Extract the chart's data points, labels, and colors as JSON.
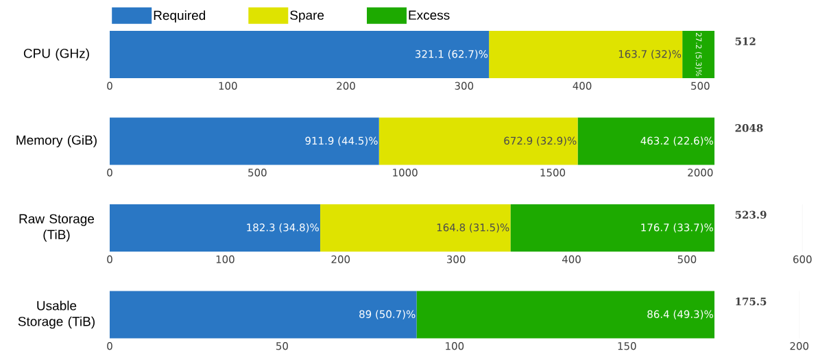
{
  "chart_data": [
    {
      "type": "bar",
      "orientation": "horizontal",
      "stacked": true,
      "categories": [
        "CPU (GHz)"
      ],
      "legend": "top",
      "xlim": [
        0,
        512
      ],
      "xticks": [
        0,
        100,
        200,
        300,
        400,
        500
      ],
      "totals": [
        "512"
      ],
      "series": [
        {
          "name": "Required",
          "color": "#2a77c4",
          "values": [
            321.1
          ],
          "value_labels": [
            "321.1 (62.7)%"
          ]
        },
        {
          "name": "Spare",
          "color": "#dfe300",
          "values": [
            163.7
          ],
          "value_labels": [
            "163.7 (32)%"
          ]
        },
        {
          "name": "Excess",
          "color": "#1daa00",
          "values": [
            27.2
          ],
          "value_labels": [
            "27.2 (5.3)%"
          ]
        }
      ]
    },
    {
      "type": "bar",
      "orientation": "horizontal",
      "stacked": true,
      "categories": [
        "Memory (GiB)"
      ],
      "xlim": [
        0,
        2048
      ],
      "xticks": [
        0,
        500,
        1000,
        1500,
        2000
      ],
      "totals": [
        "2048"
      ],
      "series": [
        {
          "color": "#2a77c4",
          "values": [
            911.9
          ],
          "value_labels": [
            "911.9 (44.5)%"
          ]
        },
        {
          "color": "#dfe300",
          "values": [
            672.9
          ],
          "value_labels": [
            "672.9 (32.9)%"
          ]
        },
        {
          "color": "#1daa00",
          "values": [
            463.2
          ],
          "value_labels": [
            "463.2 (22.6)%"
          ]
        }
      ]
    },
    {
      "type": "bar",
      "orientation": "horizontal",
      "stacked": true,
      "categories": [
        "Raw Storage (TiB)"
      ],
      "grid": "x",
      "xlim": [
        0,
        600
      ],
      "xticks": [
        0,
        100,
        200,
        300,
        400,
        500,
        600
      ],
      "totals": [
        "523.9"
      ],
      "series": [
        {
          "color": "#2a77c4",
          "values": [
            182.3
          ],
          "value_labels": [
            "182.3 (34.8)%"
          ]
        },
        {
          "color": "#dfe300",
          "values": [
            164.8
          ],
          "value_labels": [
            "164.8 (31.5)%"
          ]
        },
        {
          "color": "#1daa00",
          "values": [
            176.7
          ],
          "value_labels": [
            "176.7 (33.7)%"
          ]
        }
      ]
    },
    {
      "type": "bar",
      "orientation": "horizontal",
      "stacked": true,
      "categories": [
        "Usable Storage (TiB)"
      ],
      "grid": "x",
      "xlim": [
        0,
        200
      ],
      "xticks": [
        0,
        50,
        100,
        150,
        200
      ],
      "totals": [
        "175.5"
      ],
      "series": [
        {
          "color": "#2a77c4",
          "values": [
            89
          ],
          "value_labels": [
            "89 (50.7)%"
          ]
        },
        {
          "color": "#1daa00",
          "values": [
            86.4
          ],
          "value_labels": [
            "86.4 (49.3)%"
          ]
        }
      ]
    }
  ]
}
